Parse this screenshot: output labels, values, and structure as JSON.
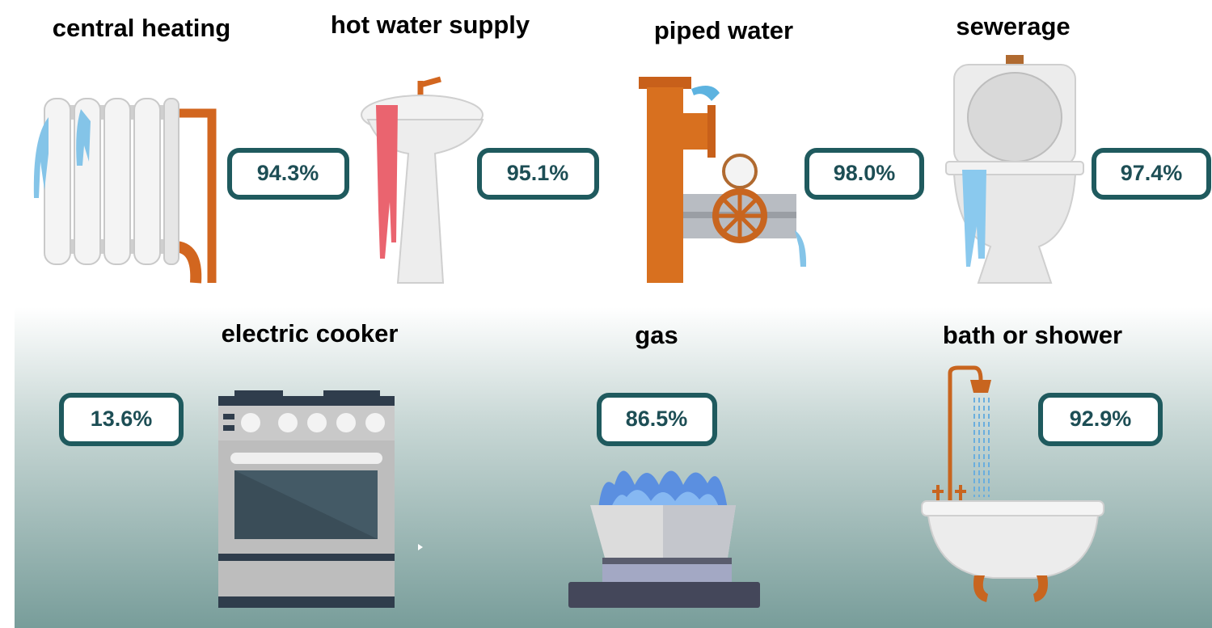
{
  "items": [
    {
      "label": "central heating",
      "value": "94.3%"
    },
    {
      "label": "hot water supply",
      "value": "95.1%"
    },
    {
      "label": "piped water",
      "value": "98.0%"
    },
    {
      "label": "sewerage",
      "value": "97.4%"
    },
    {
      "label": "electric cooker",
      "value": "13.6%"
    },
    {
      "label": "gas",
      "value": "86.5%"
    },
    {
      "label": "bath or shower",
      "value": "92.9%"
    }
  ]
}
